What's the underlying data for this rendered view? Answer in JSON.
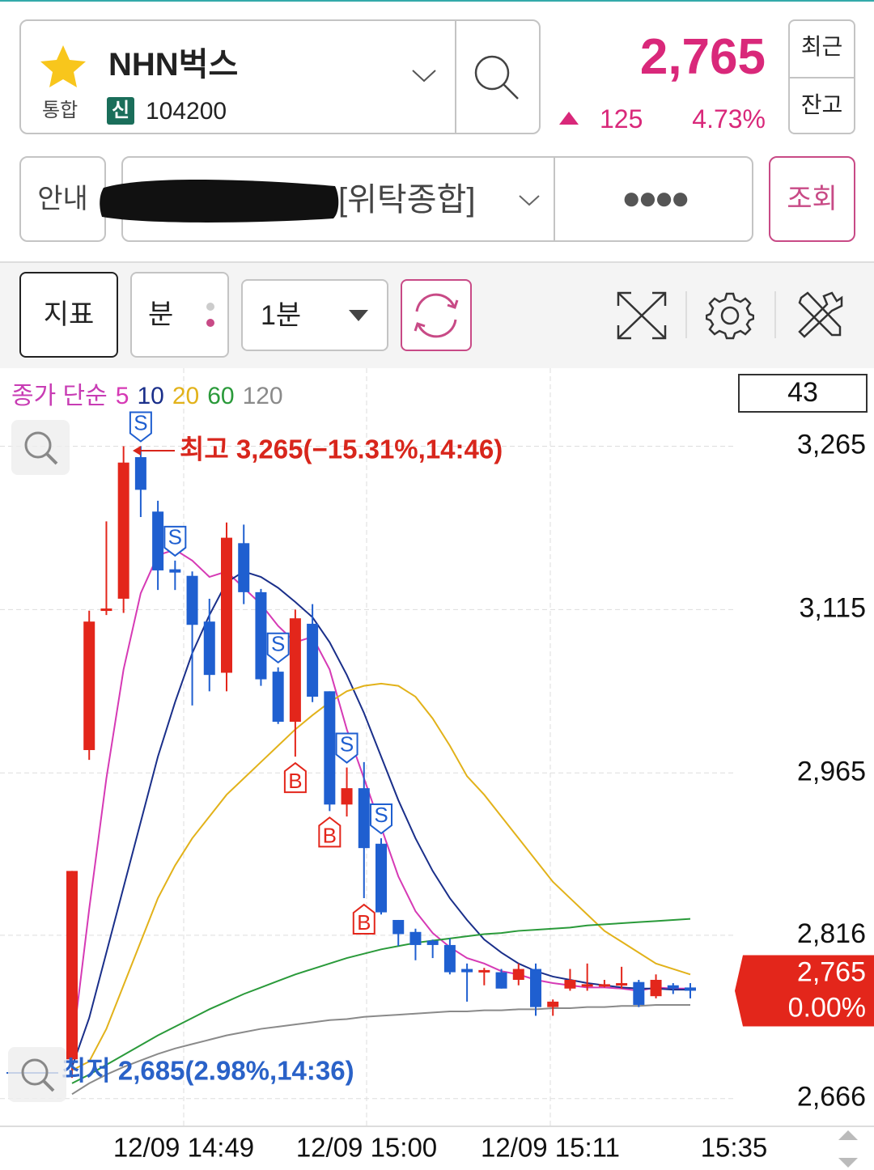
{
  "header": {
    "stock_name": "NHN벅스",
    "market": "통합",
    "credit_badge": "신",
    "code": "104200",
    "price": "2,765",
    "change": "125",
    "change_pct": "4.73%",
    "recent_button": "최근",
    "balance_button": "잔고"
  },
  "account": {
    "guide_button": "안내",
    "account_type": "[위탁종합]",
    "password": "●●●●",
    "query_button": "조회"
  },
  "toolbar": {
    "indicator_button": "지표",
    "period_unit": "분",
    "interval": "1분"
  },
  "chart_data": {
    "type": "candlestick",
    "legend_title": "종가 단순",
    "candles": {
      "open": [
        2702,
        2986,
        3114,
        3125,
        3255,
        3205,
        3152,
        3146,
        3104,
        3057,
        3176,
        3131,
        3058,
        3012,
        3102,
        3040,
        2936,
        2951,
        2900,
        2830,
        2819,
        2811,
        2807,
        2785,
        2782,
        2782,
        2775,
        2785,
        2750,
        2767,
        2769,
        2770,
        2770,
        2773,
        2760,
        2770,
        2768
      ],
      "high": [
        2875,
        3114,
        3196,
        3265,
        3265,
        3215,
        3160,
        3150,
        3125,
        3195,
        3193,
        3134,
        3062,
        3115,
        3120,
        3040,
        2970,
        2975,
        2905,
        2830,
        2822,
        2812,
        2813,
        2790,
        2786,
        2785,
        2790,
        2790,
        2757,
        2785,
        2790,
        2775,
        2787,
        2775,
        2780,
        2772,
        2772
      ],
      "low": [
        2685,
        2977,
        3110,
        3112,
        3200,
        3133,
        3133,
        3027,
        3040,
        3040,
        3120,
        3045,
        3010,
        2980,
        3030,
        2930,
        2925,
        2850,
        2835,
        2806,
        2793,
        2795,
        2780,
        2755,
        2770,
        2767,
        2770,
        2742,
        2742,
        2765,
        2765,
        2768,
        2767,
        2750,
        2758,
        2762,
        2758
      ],
      "close": [
        2875,
        3104,
        3116,
        3250,
        3225,
        3151,
        3149,
        3101,
        3055,
        3181,
        3131,
        3051,
        3012,
        3107,
        3035,
        2936,
        2951,
        2896,
        2837,
        2817,
        2807,
        2807,
        2782,
        2782,
        2784,
        2767,
        2785,
        2750,
        2755,
        2775,
        2771,
        2771,
        2772,
        2752,
        2775,
        2767,
        2765
      ]
    },
    "up_color": "#e3261b",
    "down_color": "#1f5fd0",
    "series": [
      {
        "name": "5",
        "color": "#d63ab5",
        "values": [
          2710,
          2840,
          2960,
          3060,
          3130,
          3165,
          3170,
          3160,
          3145,
          3150,
          3135,
          3120,
          3100,
          3085,
          3090,
          3060,
          3005,
          2960,
          2915,
          2870,
          2838,
          2818,
          2805,
          2795,
          2790,
          2783,
          2780,
          2775,
          2772,
          2770,
          2768,
          2768,
          2767,
          2765,
          2768,
          2767,
          2767
        ]
      },
      {
        "name": "10",
        "color": "#1a2f8a",
        "values": [
          2695,
          2740,
          2800,
          2860,
          2920,
          2980,
          3030,
          3075,
          3110,
          3140,
          3150,
          3145,
          3135,
          3122,
          3108,
          3085,
          3055,
          3020,
          2980,
          2940,
          2905,
          2875,
          2850,
          2830,
          2812,
          2800,
          2790,
          2783,
          2778,
          2775,
          2772,
          2770,
          2768,
          2767,
          2767,
          2766,
          2766
        ]
      },
      {
        "name": "20",
        "color": "#e2b21a",
        "values": [
          2692,
          2700,
          2730,
          2770,
          2810,
          2850,
          2880,
          2905,
          2925,
          2945,
          2960,
          2975,
          2990,
          3005,
          3018,
          3030,
          3040,
          3045,
          3047,
          3045,
          3035,
          3015,
          2990,
          2962,
          2945,
          2925,
          2905,
          2885,
          2865,
          2850,
          2835,
          2820,
          2810,
          2800,
          2790,
          2785,
          2780
        ]
      },
      {
        "name": "60",
        "color": "#2a9a3a",
        "values": [
          2680,
          2688,
          2697,
          2706,
          2715,
          2724,
          2732,
          2740,
          2748,
          2755,
          2762,
          2768,
          2774,
          2780,
          2785,
          2790,
          2795,
          2799,
          2803,
          2806,
          2809,
          2811,
          2813,
          2815,
          2817,
          2818,
          2820,
          2821,
          2822,
          2823,
          2825,
          2826,
          2827,
          2828,
          2829,
          2830,
          2831
        ]
      },
      {
        "name": "120",
        "color": "#8a8a8a",
        "values": [
          2670,
          2680,
          2688,
          2695,
          2701,
          2707,
          2712,
          2716,
          2720,
          2724,
          2727,
          2730,
          2732,
          2734,
          2736,
          2738,
          2739,
          2741,
          2742,
          2743,
          2744,
          2745,
          2746,
          2746,
          2747,
          2747,
          2748,
          2748,
          2749,
          2749,
          2750,
          2750,
          2751,
          2751,
          2752,
          2752,
          2752
        ]
      }
    ],
    "ylim": [
      2642,
      3333
    ],
    "yticks": [
      {
        "value": 2666,
        "label": "2,666"
      },
      {
        "value": 2816,
        "label": "2,816"
      },
      {
        "value": 2965,
        "label": "2,965"
      },
      {
        "value": 3115,
        "label": "3,115"
      },
      {
        "value": 3265,
        "label": "3,265"
      }
    ],
    "x_labels": [
      "12/09 14:49",
      "12/09 15:00",
      "12/09 15:11",
      "15:35"
    ],
    "grid": true,
    "counter": 43,
    "current_price": {
      "value": 2765,
      "label": "2,765"
    },
    "current_change": "0.00%",
    "annotations": [
      "최고 3,265(−15.31%,14:46)",
      "최저 2,685(2.98%,14:36)"
    ],
    "signals": [
      {
        "label": "S",
        "candle": 4
      },
      {
        "label": "S",
        "candle": 6
      },
      {
        "label": "S",
        "candle": 12
      },
      {
        "label": "S",
        "candle": 16
      },
      {
        "label": "S",
        "candle": 18
      },
      {
        "label": "B",
        "candle": 13
      },
      {
        "label": "B",
        "candle": 15
      },
      {
        "label": "B",
        "candle": 17
      }
    ]
  }
}
